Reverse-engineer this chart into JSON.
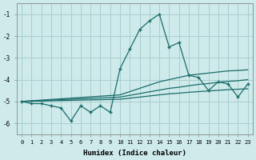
{
  "xlabel": "Humidex (Indice chaleur)",
  "bg_color": "#ceeaea",
  "grid_color": "#aacece",
  "line_color": "#1a6b6b",
  "x_values": [
    0,
    1,
    2,
    3,
    4,
    5,
    6,
    7,
    8,
    9,
    10,
    11,
    12,
    13,
    14,
    15,
    16,
    17,
    18,
    19,
    20,
    21,
    22,
    23
  ],
  "series1": [
    -5.0,
    -5.1,
    -5.1,
    -5.2,
    -5.3,
    -5.9,
    -5.2,
    -5.5,
    -5.2,
    -5.5,
    -3.5,
    -2.6,
    -1.7,
    -1.3,
    -1.0,
    -2.5,
    -2.3,
    -3.8,
    -3.9,
    -4.5,
    -4.1,
    -4.2,
    -4.8,
    -4.2
  ],
  "series2": [
    -5.0,
    -4.97,
    -4.94,
    -4.91,
    -4.88,
    -4.85,
    -4.82,
    -4.79,
    -4.76,
    -4.73,
    -4.7,
    -4.55,
    -4.4,
    -4.25,
    -4.1,
    -4.0,
    -3.9,
    -3.8,
    -3.75,
    -3.7,
    -3.65,
    -3.6,
    -3.58,
    -3.55
  ],
  "series3": [
    -5.0,
    -4.98,
    -4.96,
    -4.94,
    -4.92,
    -4.9,
    -4.88,
    -4.86,
    -4.84,
    -4.82,
    -4.8,
    -4.72,
    -4.64,
    -4.56,
    -4.48,
    -4.4,
    -4.35,
    -4.28,
    -4.22,
    -4.18,
    -4.12,
    -4.08,
    -4.05,
    -4.0
  ],
  "series4": [
    -5.0,
    -4.99,
    -4.98,
    -4.97,
    -4.96,
    -4.95,
    -4.94,
    -4.93,
    -4.92,
    -4.91,
    -4.9,
    -4.85,
    -4.8,
    -4.75,
    -4.7,
    -4.65,
    -4.62,
    -4.58,
    -4.55,
    -4.52,
    -4.49,
    -4.46,
    -4.44,
    -4.42
  ],
  "ylim": [
    -6.5,
    -0.5
  ],
  "xlim": [
    -0.5,
    23.5
  ],
  "yticks": [
    -6,
    -5,
    -4,
    -3,
    -2,
    -1
  ],
  "xticks": [
    0,
    1,
    2,
    3,
    4,
    5,
    6,
    7,
    8,
    9,
    10,
    11,
    12,
    13,
    14,
    15,
    16,
    17,
    18,
    19,
    20,
    21,
    22,
    23
  ]
}
